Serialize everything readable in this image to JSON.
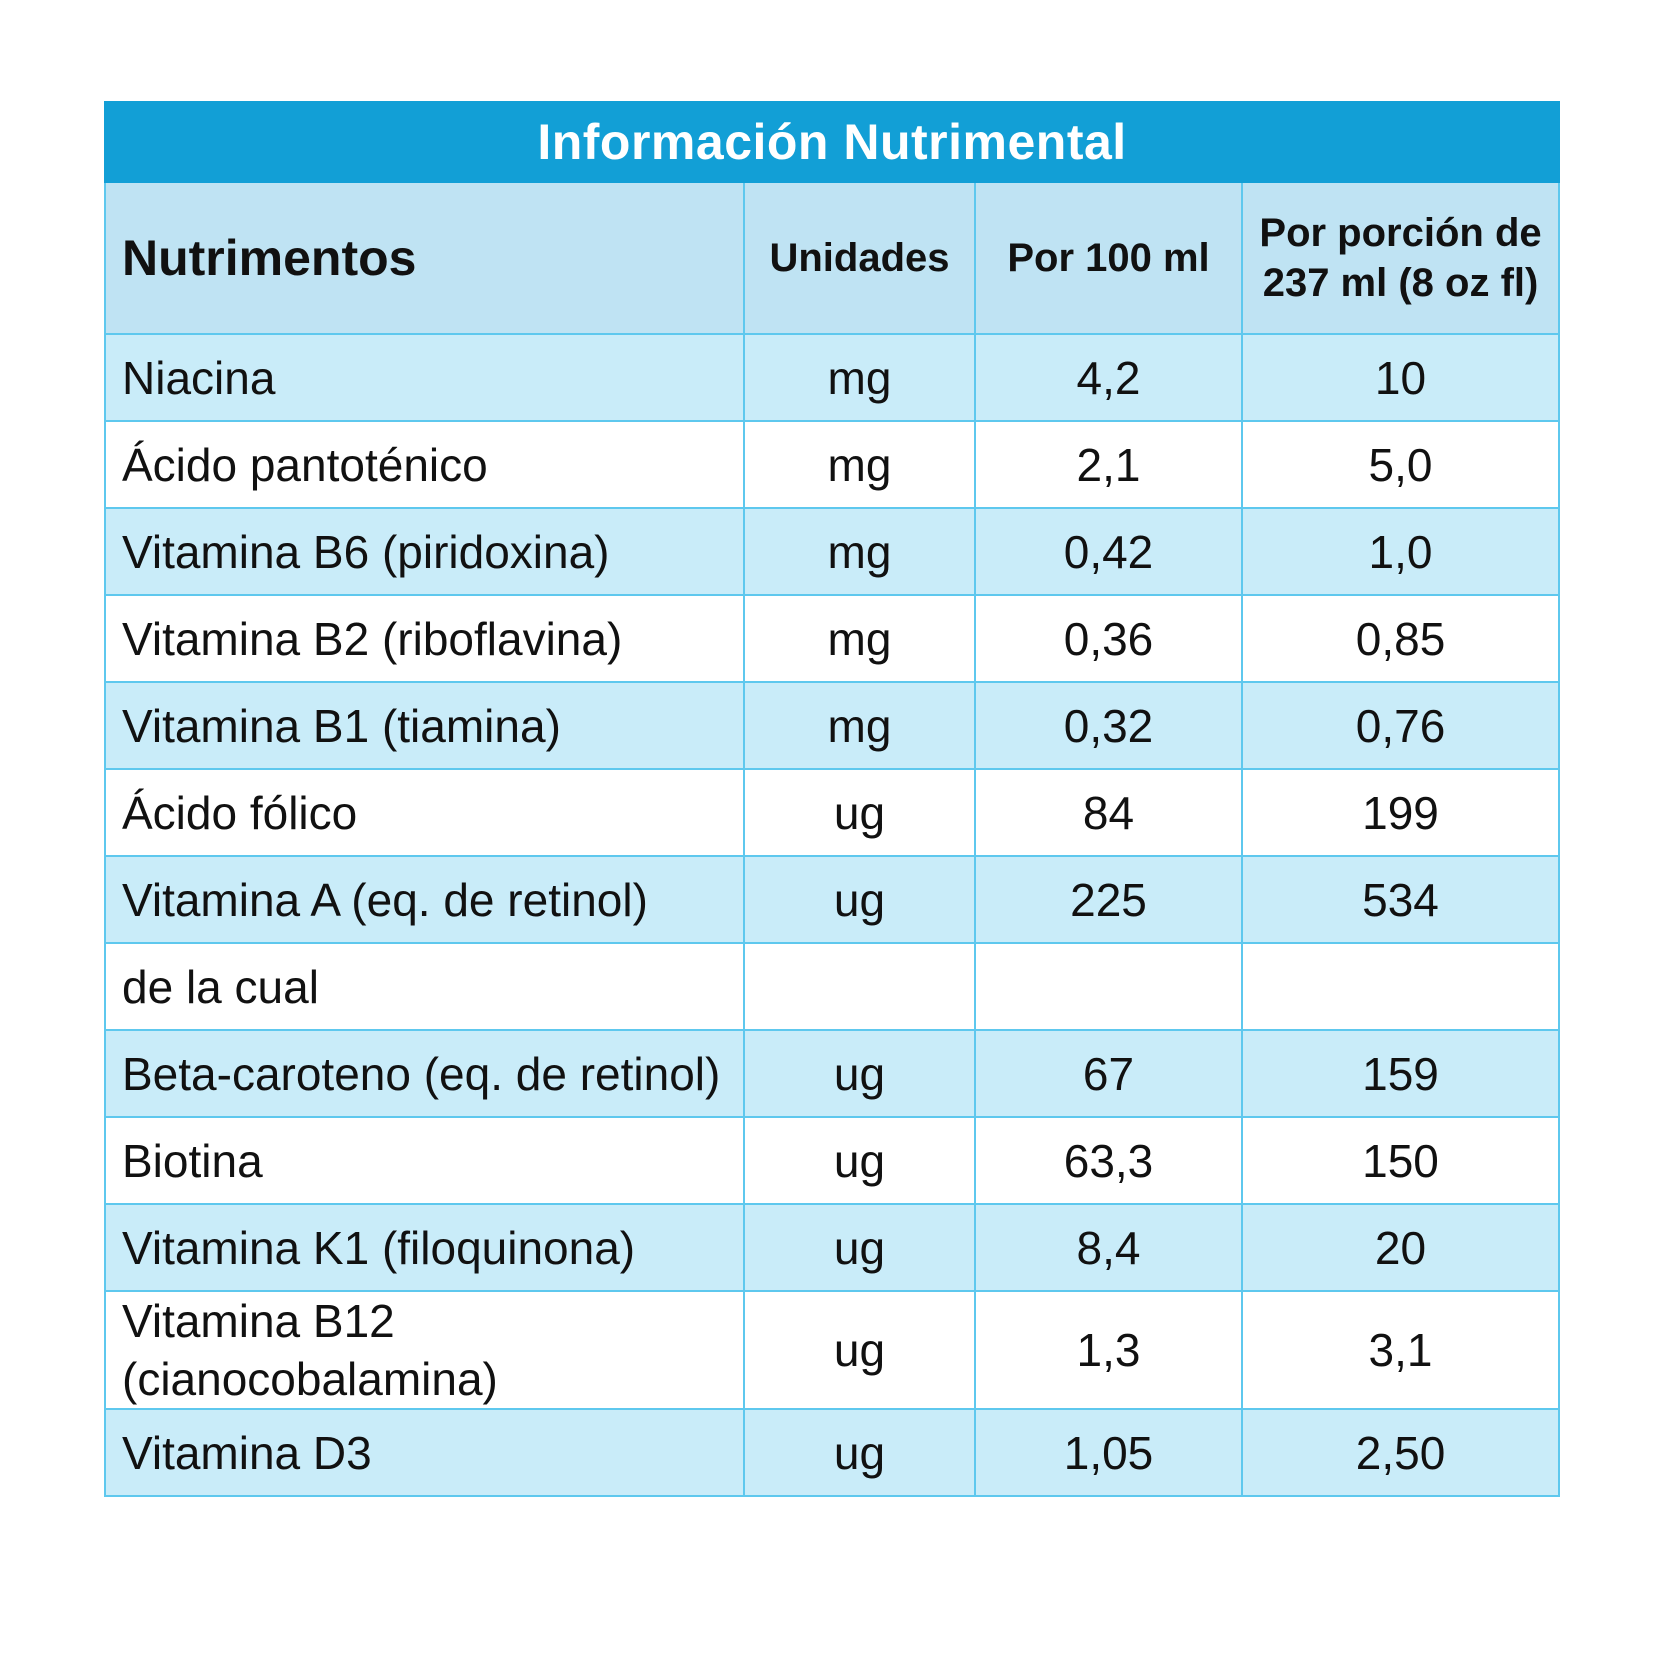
{
  "table": {
    "title": "Información Nutrimental",
    "header": [
      "Nutrimentos",
      "Unidades",
      "Por 100 ml",
      "Por porción de 237 ml (8 oz fl)"
    ],
    "rows": [
      [
        "Niacina",
        "mg",
        "4,2",
        "10"
      ],
      [
        "Ácido pantoténico",
        "mg",
        "2,1",
        "5,0"
      ],
      [
        "Vitamina B6 (piridoxina)",
        "mg",
        "0,42",
        "1,0"
      ],
      [
        "Vitamina B2 (riboflavina)",
        "mg",
        "0,36",
        "0,85"
      ],
      [
        "Vitamina B1 (tiamina)",
        "mg",
        "0,32",
        "0,76"
      ],
      [
        "Ácido fólico",
        "ug",
        "84",
        "199"
      ],
      [
        "Vitamina A (eq. de retinol)",
        "ug",
        "225",
        "534"
      ],
      [
        "de la cual",
        null,
        null,
        null
      ],
      [
        "Beta-caroteno (eq. de retinol)",
        "ug",
        "67",
        "159"
      ],
      [
        "Biotina",
        "ug",
        "63,3",
        "150"
      ],
      [
        "Vitamina K1 (filoquinona)",
        "ug",
        "8,4",
        "20"
      ],
      [
        "Vitamina B12 (cianocobalamina)",
        "ug",
        "1,3",
        "3,1"
      ],
      [
        "Vitamina D3",
        "ug",
        "1,05",
        "2,50"
      ]
    ]
  }
}
